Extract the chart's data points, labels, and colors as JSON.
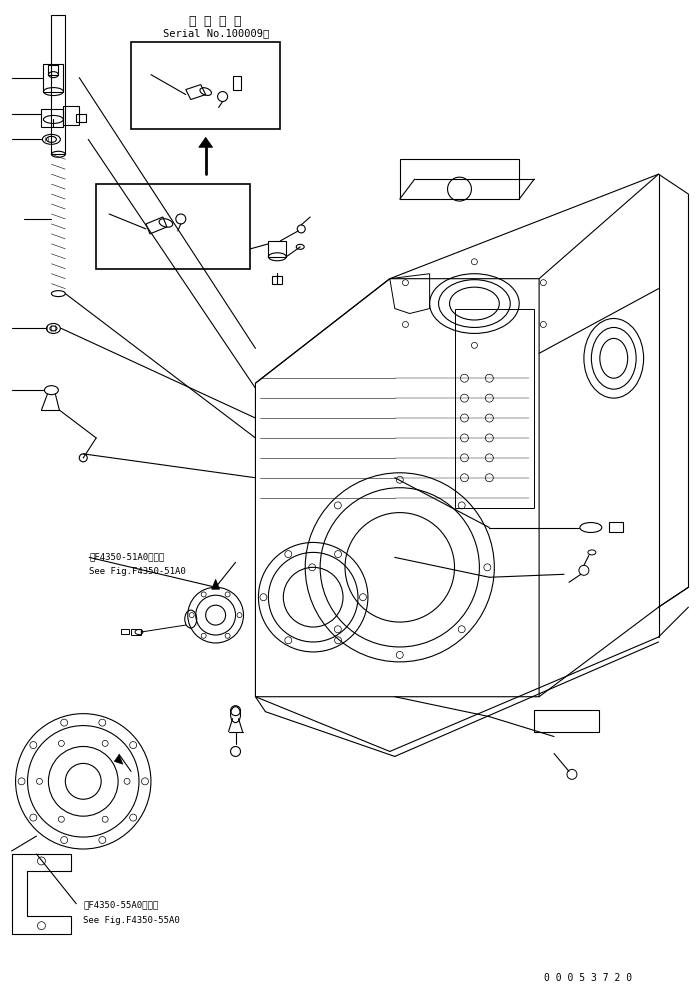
{
  "figsize": [
    7.0,
    9.85
  ],
  "dpi": 100,
  "bg_color": "#ffffff",
  "title_jp": "適 用 号 機",
  "title_en": "Serial No.100009～",
  "ref1_jp": "第F4350-51A0図参照",
  "ref1_en": "See Fig.F4350-51A0",
  "ref2_jp": "第F4350-55A0図参照",
  "ref2_en": "See Fig.F4350-55A0",
  "part_number": "0 0 0 5 3 7 2 0",
  "lc": "#000000",
  "lw": 0.8
}
